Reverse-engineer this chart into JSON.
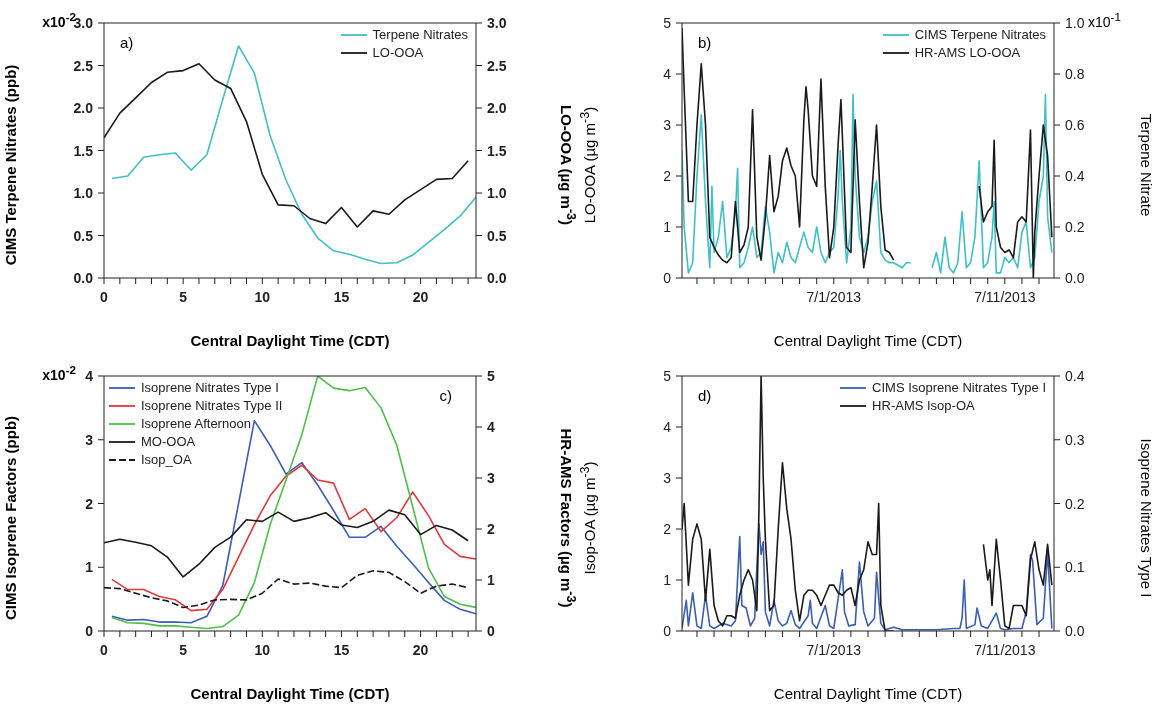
{
  "chart_data": [
    {
      "type": "line",
      "xlabel": "Central Daylight Time (CDT)",
      "ylabel": "CIMS Terpene Nitrates (ppb)",
      "y2label": "LO-OOA (µg m$^{-3}$)",
      "annotations": [
        "a)",
        "x10$^{-2}$"
      ],
      "legend": "top right",
      "xlim": [
        0,
        23.5
      ],
      "xticks": [
        0,
        {
          "value": 1,
          "label": null
        },
        {
          "value": 2,
          "label": null
        },
        {
          "value": 3,
          "label": null
        },
        {
          "value": 4,
          "label": null
        },
        5,
        {
          "value": 6,
          "label": null
        },
        {
          "value": 7,
          "label": null
        },
        {
          "value": 8,
          "label": null
        },
        {
          "value": 9,
          "label": null
        },
        10,
        {
          "value": 11,
          "label": null
        },
        {
          "value": 12,
          "label": null
        },
        {
          "value": 13,
          "label": null
        },
        {
          "value": 14,
          "label": null
        },
        15,
        {
          "value": 16,
          "label": null
        },
        {
          "value": 17,
          "label": null
        },
        {
          "value": 18,
          "label": null
        },
        {
          "value": 19,
          "label": null
        },
        20,
        {
          "value": 21,
          "label": null
        },
        {
          "value": 22,
          "label": null
        },
        {
          "value": 23,
          "label": null
        }
      ],
      "ylim": [
        0,
        3
      ],
      "yticks": [
        {
          "value": 0,
          "label": "0.0"
        },
        0.5,
        {
          "value": 1,
          "label": "1.0"
        },
        1.5,
        {
          "value": 2,
          "label": "2.0"
        },
        2.5,
        {
          "value": 3,
          "label": "3.0"
        }
      ],
      "y2lim": [
        0,
        3
      ],
      "y2ticks": [
        {
          "value": 0,
          "label": "0.0"
        },
        0.5,
        {
          "value": 1,
          "label": "1.0"
        },
        1.5,
        {
          "value": 2,
          "label": "2.0"
        },
        2.5,
        {
          "value": 3,
          "label": "3.0"
        }
      ],
      "series": [
        {
          "name": "Terpene Nitrates",
          "color": "#3ec0c6",
          "x": [
            0.5,
            1.5,
            2.5,
            3.5,
            4.5,
            5.5,
            6.5,
            7.5,
            8.5,
            9.5,
            10.5,
            11.5,
            12.5,
            13.5,
            14.5,
            15.5,
            16.5,
            17.5,
            18.5,
            19.5,
            20.5,
            21.5,
            22.5,
            23.5
          ],
          "values": [
            1.17,
            1.2,
            1.42,
            1.45,
            1.47,
            1.27,
            1.45,
            2.1,
            2.73,
            2.41,
            1.67,
            1.15,
            0.75,
            0.47,
            0.32,
            0.28,
            0.22,
            0.17,
            0.18,
            0.27,
            0.42,
            0.57,
            0.73,
            0.95
          ]
        },
        {
          "name": "LO-OOA",
          "color": "#1a1a1a",
          "axis": "y2",
          "x": [
            0,
            1,
            2,
            3,
            4,
            5,
            6,
            7,
            8,
            9,
            10,
            11,
            12,
            13,
            14,
            15,
            16,
            17,
            18,
            19,
            20,
            21,
            22,
            23
          ],
          "values": [
            1.65,
            1.94,
            2.12,
            2.3,
            2.42,
            2.44,
            2.52,
            2.33,
            2.23,
            1.84,
            1.22,
            0.86,
            0.85,
            0.7,
            0.64,
            0.83,
            0.6,
            0.79,
            0.75,
            0.92,
            1.04,
            1.16,
            1.17,
            1.38
          ]
        }
      ]
    },
    {
      "type": "line",
      "xlabel": "Central Daylight Time (CDT)",
      "ylabel": "LO-OOA (µg m$^{-3}$)",
      "y2label": "Terpene Nitrate",
      "annotations": [
        "b)",
        "x10$^{-1}$"
      ],
      "legend": "top right",
      "xlim": [
        "2013-06-22T03:00",
        "2013-07-13T21:00"
      ],
      "xticks": [
        {
          "value": "2013-06-23",
          "label": null
        },
        {
          "value": "2013-06-24",
          "label": null
        },
        {
          "value": "2013-06-25",
          "label": null
        },
        {
          "value": "2013-06-26",
          "label": null
        },
        {
          "value": "2013-06-27",
          "label": null
        },
        {
          "value": "2013-06-28",
          "label": null
        },
        {
          "value": "2013-06-29",
          "label": null
        },
        {
          "value": "2013-06-30",
          "label": null
        },
        {
          "value": "2013-07-01",
          "label": "7/1/2013"
        },
        {
          "value": "2013-07-02",
          "label": null
        },
        {
          "value": "2013-07-03",
          "label": null
        },
        {
          "value": "2013-07-04",
          "label": null
        },
        {
          "value": "2013-07-05",
          "label": null
        },
        {
          "value": "2013-07-06",
          "label": null
        },
        {
          "value": "2013-07-07",
          "label": null
        },
        {
          "value": "2013-07-08",
          "label": null
        },
        {
          "value": "2013-07-09",
          "label": null
        },
        {
          "value": "2013-07-10",
          "label": null
        },
        {
          "value": "2013-07-11",
          "label": "7/11/2013"
        },
        {
          "value": "2013-07-12",
          "label": null
        },
        {
          "value": "2013-07-13",
          "label": null
        }
      ],
      "ylim": [
        0,
        5
      ],
      "yticks": [
        0,
        1,
        2,
        3,
        4,
        5
      ],
      "y2lim": [
        0,
        1
      ],
      "y2ticks": [
        {
          "value": 0,
          "label": "0.0"
        },
        0.2,
        0.4,
        0.6,
        0.8,
        {
          "value": 1,
          "label": "1.0"
        }
      ],
      "series": [
        {
          "name": "CIMS Terpene Nitrates",
          "color": "#3ec0c6",
          "axis": "y2",
          "x": [
            "2013-06-22T03:00",
            "2013-06-22T06:00",
            "2013-06-22T12:00",
            "2013-06-22T18:00",
            "2013-06-23T00:00",
            "2013-06-23T06:00",
            "2013-06-23T12:00",
            "2013-06-23T18:00",
            "2013-06-23T21:00",
            "2013-06-24T00:00",
            "2013-06-24T06:00",
            "2013-06-24T12:00",
            "2013-06-24T18:00",
            "2013-06-25T00:00",
            "2013-06-25T06:00",
            "2013-06-25T09:00",
            "2013-06-25T12:00",
            "2013-06-25T18:00",
            "2013-06-26T00:00",
            "2013-06-26T06:00",
            "2013-06-26T12:00",
            "2013-06-26T18:00",
            "2013-06-27T00:00",
            "2013-06-27T06:00",
            "2013-06-27T12:00",
            "2013-06-27T18:00",
            "2013-06-28T00:00",
            "2013-06-28T06:00",
            "2013-06-28T12:00",
            "2013-06-28T18:00",
            "2013-06-29T00:00",
            "2013-06-29T06:00",
            "2013-06-29T12:00",
            "2013-06-29T18:00",
            "2013-06-30T00:00",
            "2013-06-30T06:00",
            "2013-06-30T12:00",
            "2013-06-30T18:00",
            "2013-07-01T00:00",
            "2013-07-01T06:00",
            "2013-07-01T09:00",
            "2013-07-01T12:00",
            "2013-07-01T18:00",
            "2013-07-02T00:00",
            "2013-07-02T03:00",
            "2013-07-02T06:00",
            "2013-07-02T12:00",
            "2013-07-02T18:00",
            "2013-07-03T00:00",
            "2013-07-03T06:00",
            "2013-07-03T12:00",
            "2013-07-03T18:00",
            "2013-07-04T00:00",
            "2013-07-04T06:00",
            "2013-07-04T12:00",
            "2013-07-04T18:00",
            "2013-07-05T00:00",
            "2013-07-05T06:00",
            "2013-07-05T12:00",
            "2013-07-05T18:00",
            "2013-07-06T18:00",
            "2013-07-07T00:00",
            "2013-07-07T06:00",
            "2013-07-07T12:00",
            "2013-07-07T18:00",
            "2013-07-08T00:00",
            "2013-07-08T06:00",
            "2013-07-08T12:00",
            "2013-07-08T18:00",
            "2013-07-09T00:00",
            "2013-07-09T06:00",
            "2013-07-09T12:00",
            "2013-07-09T18:00",
            "2013-07-10T00:00",
            "2013-07-10T06:00",
            "2013-07-10T09:00",
            "2013-07-10T12:00",
            "2013-07-10T18:00",
            "2013-07-11T00:00",
            "2013-07-11T06:00",
            "2013-07-11T12:00",
            "2013-07-11T18:00",
            "2013-07-12T00:00",
            "2013-07-12T06:00",
            "2013-07-12T12:00",
            "2013-07-12T18:00",
            "2013-07-13T00:00",
            "2013-07-13T06:00",
            "2013-07-13T09:00",
            "2013-07-13T12:00",
            "2013-07-13T18:00"
          ],
          "values": [
            0.5,
            0.2,
            0.02,
            0.06,
            0.4,
            0.64,
            0.3,
            0.04,
            0.36,
            0.1,
            0.16,
            0.3,
            0.08,
            0.12,
            0.26,
            0.43,
            0.04,
            0.06,
            0.12,
            0.2,
            0.08,
            0.1,
            0.28,
            0.18,
            0.02,
            0.1,
            0.06,
            0.14,
            0.08,
            0.06,
            0.12,
            0.18,
            0.12,
            0.1,
            0.2,
            0.1,
            0.06,
            0.1,
            0.12,
            0.32,
            0.5,
            0.3,
            0.06,
            0.2,
            0.72,
            0.4,
            0.16,
            0.1,
            0.16,
            0.3,
            0.38,
            0.1,
            0.07,
            0.06,
            0.06,
            0.05,
            0.04,
            0.06,
            0.06,
            null,
            0.04,
            0.1,
            0.02,
            0.16,
            0.04,
            0.02,
            0.06,
            0.26,
            0.04,
            0.06,
            0.16,
            0.46,
            0.04,
            0.06,
            0.16,
            0.3,
            0.02,
            0.02,
            0.08,
            0.06,
            0.08,
            0.04,
            0.18,
            0.22,
            0.04,
            0.08,
            0.3,
            0.4,
            0.72,
            0.24,
            0.1
          ]
        },
        {
          "name": "HR-AMS LO-OOA",
          "color": "#1a1a1a",
          "x": [
            "2013-06-22T03:00",
            "2013-06-22T06:00",
            "2013-06-22T12:00",
            "2013-06-22T18:00",
            "2013-06-23T00:00",
            "2013-06-23T06:00",
            "2013-06-23T12:00",
            "2013-06-23T18:00",
            "2013-06-24T00:00",
            "2013-06-24T06:00",
            "2013-06-24T12:00",
            "2013-06-24T18:00",
            "2013-06-25T00:00",
            "2013-06-25T06:00",
            "2013-06-25T12:00",
            "2013-06-25T18:00",
            "2013-06-26T00:00",
            "2013-06-26T06:00",
            "2013-06-26T12:00",
            "2013-06-26T18:00",
            "2013-06-27T00:00",
            "2013-06-27T06:00",
            "2013-06-27T12:00",
            "2013-06-27T18:00",
            "2013-06-28T00:00",
            "2013-06-28T06:00",
            "2013-06-28T12:00",
            "2013-06-28T18:00",
            "2013-06-29T00:00",
            "2013-06-29T06:00",
            "2013-06-29T09:00",
            "2013-06-29T12:00",
            "2013-06-29T18:00",
            "2013-06-30T00:00",
            "2013-06-30T06:00",
            "2013-06-30T12:00",
            "2013-06-30T18:00",
            "2013-07-01T00:00",
            "2013-07-01T06:00",
            "2013-07-01T10:00",
            "2013-07-01T12:00",
            "2013-07-01T18:00",
            "2013-07-02T00:00",
            "2013-07-02T06:00",
            "2013-07-02T12:00",
            "2013-07-02T18:00",
            "2013-07-03T00:00",
            "2013-07-03T06:00",
            "2013-07-03T12:00",
            "2013-07-03T18:00",
            "2013-07-04T00:00",
            "2013-07-04T06:00",
            "2013-07-04T12:00",
            "2013-07-05T00:00",
            "2013-07-09T12:00",
            "2013-07-09T18:00",
            "2013-07-10T00:00",
            "2013-07-10T06:00",
            "2013-07-10T09:00",
            "2013-07-10T12:00",
            "2013-07-10T18:00",
            "2013-07-11T00:00",
            "2013-07-11T06:00",
            "2013-07-11T12:00",
            "2013-07-11T18:00",
            "2013-07-12T00:00",
            "2013-07-12T06:00",
            "2013-07-12T12:00",
            "2013-07-12T16:00",
            "2013-07-12T18:00",
            "2013-07-13T00:00",
            "2013-07-13T06:00",
            "2013-07-13T12:00",
            "2013-07-13T18:00"
          ],
          "values": [
            4.9,
            3.7,
            1.5,
            1.5,
            3.0,
            4.2,
            3.0,
            0.8,
            0.6,
            0.45,
            0.35,
            0.3,
            0.4,
            1.5,
            0.5,
            0.65,
            1.0,
            3.3,
            0.8,
            0.35,
            1.2,
            2.4,
            1.3,
            1.6,
            2.3,
            2.55,
            2.2,
            2.0,
            1.0,
            3.1,
            3.75,
            3.3,
            2.0,
            1.8,
            3.9,
            1.8,
            0.4,
            1.0,
            2.6,
            3.5,
            2.8,
            0.6,
            0.5,
            3.1,
            1.5,
            0.2,
            0.7,
            1.8,
            3.0,
            1.4,
            0.55,
            0.5,
            0.35,
            null,
            1.8,
            1.1,
            1.3,
            1.4,
            2.7,
            1.0,
            0.6,
            0.5,
            0.55,
            0.4,
            1.1,
            1.2,
            1.1,
            2.9,
            0.0,
            0.9,
            2.0,
            3.0,
            2.4,
            0.8
          ]
        }
      ]
    },
    {
      "type": "line",
      "xlabel": "Central Daylight Time (CDT)",
      "ylabel": "CIMS Isoprene Factors (ppb)",
      "y2label": "HR-AMS Factors (µg m$^{-3}$)",
      "annotations": [
        "c)",
        "x10$^{-2}$"
      ],
      "legend": "top left",
      "xlim": [
        0,
        23.5
      ],
      "xticks": [
        0,
        {
          "value": 1,
          "label": null
        },
        {
          "value": 2,
          "label": null
        },
        {
          "value": 3,
          "label": null
        },
        {
          "value": 4,
          "label": null
        },
        5,
        {
          "value": 6,
          "label": null
        },
        {
          "value": 7,
          "label": null
        },
        {
          "value": 8,
          "label": null
        },
        {
          "value": 9,
          "label": null
        },
        10,
        {
          "value": 11,
          "label": null
        },
        {
          "value": 12,
          "label": null
        },
        {
          "value": 13,
          "label": null
        },
        {
          "value": 14,
          "label": null
        },
        15,
        {
          "value": 16,
          "label": null
        },
        {
          "value": 17,
          "label": null
        },
        {
          "value": 18,
          "label": null
        },
        {
          "value": 19,
          "label": null
        },
        20,
        {
          "value": 21,
          "label": null
        },
        {
          "value": 22,
          "label": null
        },
        {
          "value": 23,
          "label": null
        }
      ],
      "ylim": [
        0,
        4
      ],
      "yticks": [
        0,
        1,
        2,
        3,
        4
      ],
      "y2lim": [
        0,
        5
      ],
      "y2ticks": [
        0,
        1,
        2,
        3,
        4,
        5
      ],
      "series": [
        {
          "name": "Isoprene Nitrates Type I",
          "color": "#3a5eb4",
          "x": [
            0.5,
            1.5,
            2.5,
            3.5,
            4.5,
            5.5,
            6.5,
            7.5,
            8.5,
            9.5,
            10.5,
            11.5,
            12.5,
            13.5,
            14.5,
            15.5,
            16.5,
            17.5,
            18.5,
            19.5,
            20.5,
            21.5,
            22.5,
            23.5
          ],
          "values": [
            0.23,
            0.17,
            0.18,
            0.14,
            0.14,
            0.13,
            0.23,
            0.71,
            2.0,
            3.3,
            2.91,
            2.46,
            2.64,
            2.29,
            1.89,
            1.47,
            1.47,
            1.64,
            1.33,
            1.05,
            0.76,
            0.48,
            0.34,
            0.27
          ]
        },
        {
          "name": "Isoprene Nitrates Type II",
          "color": "#e03a3e",
          "x": [
            0.5,
            1.5,
            2.5,
            3.5,
            4.5,
            5.5,
            6.5,
            7.5,
            8.5,
            9.5,
            10.5,
            11.5,
            12.5,
            13.5,
            14.5,
            15.5,
            16.5,
            17.5,
            18.5,
            19.5,
            20.5,
            21.5,
            22.5,
            23.5
          ],
          "values": [
            0.81,
            0.65,
            0.65,
            0.54,
            0.49,
            0.32,
            0.34,
            0.65,
            1.16,
            1.67,
            2.12,
            2.43,
            2.6,
            2.37,
            2.32,
            1.75,
            1.92,
            1.56,
            1.78,
            2.18,
            1.81,
            1.36,
            1.17,
            1.13
          ]
        },
        {
          "name": "Isoprene Afternoon",
          "color": "#4dbf4a",
          "x": [
            0.5,
            1.5,
            2.5,
            3.5,
            4.5,
            5.5,
            6.5,
            7.5,
            8.5,
            9.5,
            10.5,
            11.5,
            12.5,
            13.5,
            14.5,
            15.5,
            16.5,
            17.5,
            18.5,
            19.5,
            20.5,
            21.5,
            22.5,
            23.5
          ],
          "values": [
            0.21,
            0.13,
            0.12,
            0.08,
            0.08,
            0.06,
            0.04,
            0.07,
            0.25,
            0.76,
            1.67,
            2.37,
            3.08,
            4.0,
            3.81,
            3.77,
            3.82,
            3.5,
            2.91,
            1.95,
            0.99,
            0.54,
            0.42,
            0.37
          ]
        },
        {
          "name": "MO-OOA",
          "color": "#1a1a1a",
          "axis": "y2",
          "x": [
            0,
            1,
            2,
            3,
            4,
            5,
            6,
            7,
            8,
            9,
            10,
            11,
            12,
            13,
            14,
            15,
            16,
            17,
            18,
            19,
            20,
            21,
            22,
            23
          ],
          "values": [
            1.73,
            1.8,
            1.74,
            1.67,
            1.45,
            1.06,
            1.31,
            1.64,
            1.84,
            2.18,
            2.15,
            2.33,
            2.15,
            2.22,
            2.32,
            2.08,
            2.03,
            2.15,
            2.37,
            2.28,
            1.89,
            2.07,
            1.98,
            1.77
          ]
        },
        {
          "name": "Isop_OA",
          "color": "#1a1a1a",
          "axis": "y2",
          "line_style": "dashed",
          "x": [
            0,
            1,
            2,
            3,
            4,
            5,
            6,
            7,
            8,
            9,
            10,
            11,
            12,
            13,
            14,
            15,
            16,
            17,
            18,
            19,
            20,
            21,
            22,
            23
          ],
          "values": [
            0.85,
            0.83,
            0.74,
            0.65,
            0.59,
            0.46,
            0.51,
            0.61,
            0.62,
            0.61,
            0.74,
            1.02,
            0.92,
            0.94,
            0.88,
            0.85,
            1.09,
            1.18,
            1.15,
            0.97,
            0.74,
            0.88,
            0.92,
            0.85
          ]
        }
      ]
    },
    {
      "type": "line",
      "xlabel": "Central Daylight Time (CDT)",
      "ylabel": "Isop-OA (µg m$^{-3}$)",
      "y2label": "Isoprene Nitrates Type I",
      "annotations": [
        "d)"
      ],
      "legend": "top right",
      "xlim": [
        "2013-06-22T03:00",
        "2013-07-13T21:00"
      ],
      "xticks": [
        {
          "value": "2013-06-23",
          "label": null
        },
        {
          "value": "2013-06-24",
          "label": null
        },
        {
          "value": "2013-06-25",
          "label": null
        },
        {
          "value": "2013-06-26",
          "label": null
        },
        {
          "value": "2013-06-27",
          "label": null
        },
        {
          "value": "2013-06-28",
          "label": null
        },
        {
          "value": "2013-06-29",
          "label": null
        },
        {
          "value": "2013-06-30",
          "label": null
        },
        {
          "value": "2013-07-01",
          "label": "7/1/2013"
        },
        {
          "value": "2013-07-02",
          "label": null
        },
        {
          "value": "2013-07-03",
          "label": null
        },
        {
          "value": "2013-07-04",
          "label": null
        },
        {
          "value": "2013-07-05",
          "label": null
        },
        {
          "value": "2013-07-06",
          "label": null
        },
        {
          "value": "2013-07-07",
          "label": null
        },
        {
          "value": "2013-07-08",
          "label": null
        },
        {
          "value": "2013-07-09",
          "label": null
        },
        {
          "value": "2013-07-10",
          "label": null
        },
        {
          "value": "2013-07-11",
          "label": "7/11/2013"
        },
        {
          "value": "2013-07-12",
          "label": null
        },
        {
          "value": "2013-07-13",
          "label": null
        }
      ],
      "ylim": [
        0,
        5
      ],
      "yticks": [
        0,
        1,
        2,
        3,
        4,
        5
      ],
      "y2lim": [
        0,
        0.4
      ],
      "y2ticks": [
        {
          "value": 0,
          "label": "0.0"
        },
        0.1,
        0.2,
        0.3,
        0.4
      ],
      "series": [
        {
          "name": "CIMS Isoprene Nitrates Type I",
          "color": "#3a5eb4",
          "axis": "y2",
          "x": [
            "2013-06-22T03:00",
            "2013-06-22T09:00",
            "2013-06-22T12:00",
            "2013-06-22T18:00",
            "2013-06-23T00:00",
            "2013-06-23T06:00",
            "2013-06-23T12:00",
            "2013-06-23T18:00",
            "2013-06-24T00:00",
            "2013-06-24T12:00",
            "2013-06-25T00:00",
            "2013-06-25T06:00",
            "2013-06-25T12:00",
            "2013-06-25T15:00",
            "2013-06-25T21:00",
            "2013-06-26T03:00",
            "2013-06-26T09:00",
            "2013-06-26T12:00",
            "2013-06-26T15:00",
            "2013-06-26T18:00",
            "2013-06-26T21:00",
            "2013-06-27T00:00",
            "2013-06-27T06:00",
            "2013-06-27T12:00",
            "2013-06-27T18:00",
            "2013-06-28T00:00",
            "2013-06-28T06:00",
            "2013-06-28T12:00",
            "2013-06-28T18:00",
            "2013-06-29T00:00",
            "2013-06-29T12:00",
            "2013-06-29T15:00",
            "2013-06-29T18:00",
            "2013-06-30T00:00",
            "2013-06-30T12:00",
            "2013-06-30T18:00",
            "2013-07-01T00:00",
            "2013-07-01T12:00",
            "2013-07-01T15:00",
            "2013-07-01T21:00",
            "2013-07-02T06:00",
            "2013-07-02T12:00",
            "2013-07-02T18:00",
            "2013-07-03T00:00",
            "2013-07-03T09:00",
            "2013-07-03T12:00",
            "2013-07-03T18:00",
            "2013-07-04T00:00",
            "2013-07-04T12:00",
            "2013-07-05T00:00",
            "2013-07-06T00:00",
            "2013-07-07T00:00",
            "2013-07-08T00:00",
            "2013-07-08T09:00",
            "2013-07-08T12:00",
            "2013-07-08T15:00",
            "2013-07-08T18:00",
            "2013-07-09T06:00",
            "2013-07-09T09:00",
            "2013-07-09T15:00",
            "2013-07-10T00:00",
            "2013-07-10T12:00",
            "2013-07-10T18:00",
            "2013-07-11T00:00",
            "2013-07-11T12:00",
            "2013-07-12T00:00",
            "2013-07-12T06:00",
            "2013-07-12T12:00",
            "2013-07-12T15:00",
            "2013-07-12T21:00",
            "2013-07-13T06:00",
            "2013-07-13T12:00",
            "2013-07-13T18:00"
          ],
          "values": [
            0.004,
            0.048,
            0.008,
            0.06,
            0.008,
            0.004,
            0.056,
            0.008,
            0.004,
            0.012,
            0.008,
            0.016,
            0.148,
            0.04,
            0.036,
            0.008,
            0.02,
            0.1,
            0.168,
            0.12,
            0.14,
            0.03,
            0.008,
            0.048,
            0.016,
            0.008,
            0.012,
            0.032,
            0.01,
            0.004,
            0.024,
            0.048,
            0.012,
            0.004,
            0.04,
            0.008,
            0.004,
            0.096,
            0.03,
            0.008,
            0.01,
            0.108,
            0.03,
            0.008,
            0.02,
            0.092,
            0.012,
            0.002,
            0.006,
            0.002,
            0.002,
            0.002,
            0.004,
            0.004,
            0.02,
            0.08,
            0.004,
            0.01,
            0.036,
            0.008,
            0.004,
            0.028,
            0.004,
            0.002,
            0.004,
            0.004,
            0.03,
            0.12,
            0.11,
            0.01,
            0.02,
            0.124,
            0.004
          ]
        },
        {
          "name": "HR-AMS Isop-OA",
          "color": "#1a1a1a",
          "x": [
            "2013-06-22T03:00",
            "2013-06-22T06:00",
            "2013-06-22T12:00",
            "2013-06-22T18:00",
            "2013-06-23T00:00",
            "2013-06-23T06:00",
            "2013-06-23T12:00",
            "2013-06-23T18:00",
            "2013-06-24T00:00",
            "2013-06-24T06:00",
            "2013-06-24T12:00",
            "2013-06-24T18:00",
            "2013-06-25T00:00",
            "2013-06-25T06:00",
            "2013-06-25T12:00",
            "2013-06-25T18:00",
            "2013-06-26T00:00",
            "2013-06-26T06:00",
            "2013-06-26T12:00",
            "2013-06-26T15:00",
            "2013-06-26T18:00",
            "2013-06-26T21:00",
            "2013-06-27T00:00",
            "2013-06-27T06:00",
            "2013-06-27T12:00",
            "2013-06-27T18:00",
            "2013-06-28T00:00",
            "2013-06-28T06:00",
            "2013-06-28T12:00",
            "2013-06-28T18:00",
            "2013-06-29T00:00",
            "2013-06-29T06:00",
            "2013-06-29T12:00",
            "2013-06-29T18:00",
            "2013-06-30T00:00",
            "2013-06-30T06:00",
            "2013-06-30T12:00",
            "2013-06-30T18:00",
            "2013-07-01T00:00",
            "2013-07-01T06:00",
            "2013-07-01T12:00",
            "2013-07-01T18:00",
            "2013-07-02T00:00",
            "2013-07-02T06:00",
            "2013-07-02T12:00",
            "2013-07-02T18:00",
            "2013-07-03T00:00",
            "2013-07-03T06:00",
            "2013-07-03T12:00",
            "2013-07-03T15:00",
            "2013-07-03T18:00",
            "2013-07-04T00:00",
            "2013-07-04T06:00",
            "2013-07-04T12:00",
            "2013-07-05T00:00",
            "2013-07-09T18:00",
            "2013-07-10T00:00",
            "2013-07-10T03:00",
            "2013-07-10T06:00",
            "2013-07-10T12:00",
            "2013-07-10T18:00",
            "2013-07-11T00:00",
            "2013-07-11T06:00",
            "2013-07-11T12:00",
            "2013-07-11T18:00",
            "2013-07-12T00:00",
            "2013-07-12T06:00",
            "2013-07-12T12:00",
            "2013-07-12T18:00",
            "2013-07-13T00:00",
            "2013-07-13T06:00",
            "2013-07-13T12:00",
            "2013-07-13T18:00"
          ],
          "values": [
            2.0,
            2.5,
            0.9,
            1.8,
            2.1,
            1.8,
            0.6,
            1.6,
            0.5,
            0.2,
            0.1,
            0.3,
            0.3,
            0.25,
            0.7,
            1.0,
            1.2,
            1.0,
            0.4,
            2.4,
            5.0,
            3.0,
            1.8,
            0.4,
            0.5,
            2.0,
            3.3,
            2.4,
            1.8,
            0.8,
            0.2,
            0.7,
            0.8,
            0.8,
            0.7,
            0.5,
            0.7,
            0.9,
            0.9,
            0.75,
            0.7,
            0.8,
            0.85,
            0.5,
            1.0,
            1.2,
            1.75,
            1.5,
            1.5,
            2.5,
            0.5,
            0.0,
            0.0,
            0.0,
            null,
            1.7,
            1.0,
            1.2,
            0.5,
            1.8,
            1.0,
            0.1,
            0.05,
            0.5,
            0.5,
            0.5,
            0.3,
            1.4,
            1.75,
            1.2,
            0.9,
            1.7,
            0.9
          ]
        }
      ]
    }
  ]
}
